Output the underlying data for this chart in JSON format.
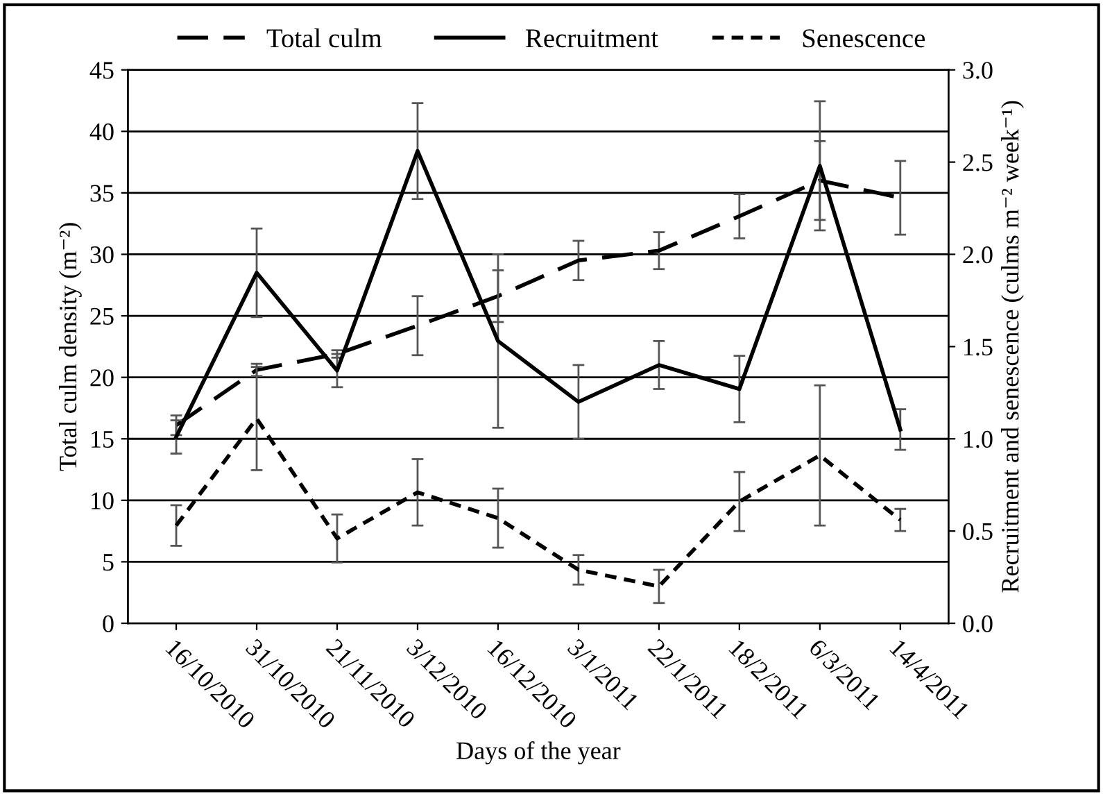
{
  "chart_data": {
    "type": "line",
    "xlabel": "Days of the year",
    "ylabel": "Total culm density (m⁻²)",
    "y2label": "Recruitment and senescence (culms m⁻² week⁻¹)",
    "categories": [
      "16/10/2010",
      "31/10/2010",
      "21/11/2010",
      "3/12/2010",
      "16/12/2010",
      "3/1/2011",
      "22/1/2011",
      "18/2/2011",
      "6/3/2011",
      "14/4/2011"
    ],
    "series": [
      {
        "name": "Total culm",
        "color": "#000000",
        "line_style": "dashed",
        "values": [
          16.1,
          20.6,
          21.9,
          24.2,
          26.6,
          29.5,
          30.3,
          33.1,
          36.0,
          34.6
        ],
        "errors": [
          0.8,
          0.5,
          0.3,
          2.4,
          2.1,
          1.6,
          1.5,
          1.8,
          3.2,
          3.0
        ]
      },
      {
        "name": "Recruitment",
        "color": "#000000",
        "line_style": "solid",
        "axis": "y2",
        "values": [
          1.01,
          1.9,
          1.37,
          2.56,
          1.53,
          1.2,
          1.4,
          1.27,
          2.48,
          1.05
        ],
        "errors": [
          0.09,
          0.24,
          0.09,
          0.26,
          0.47,
          0.2,
          0.13,
          0.18,
          0.35,
          0.11
        ]
      },
      {
        "name": "Senescence",
        "color": "#000000",
        "line_style": "dotted",
        "axis": "y2",
        "values": [
          0.53,
          1.11,
          0.46,
          0.71,
          0.57,
          0.29,
          0.2,
          0.66,
          0.91,
          0.56
        ],
        "errors": [
          0.11,
          0.28,
          0.13,
          0.18,
          0.16,
          0.08,
          0.09,
          0.16,
          0.38,
          0.06
        ]
      }
    ],
    "ylim": [
      0,
      45
    ],
    "yticks": [
      0,
      5,
      10,
      15,
      20,
      25,
      30,
      35,
      40,
      45
    ],
    "y2lim": [
      0,
      3.0
    ],
    "y2ticks": [
      {
        "value": 0,
        "label": "0.0"
      },
      {
        "value": 0.5,
        "label": "0.5"
      },
      {
        "value": 1.0,
        "label": "1.0"
      },
      {
        "value": 1.5,
        "label": "1.5"
      },
      {
        "value": 2.0,
        "label": "2.0"
      },
      {
        "value": 2.5,
        "label": "2.5"
      },
      {
        "value": 3.0,
        "label": "3.0"
      }
    ],
    "grid": "y",
    "legend": "top",
    "marker": "none"
  }
}
